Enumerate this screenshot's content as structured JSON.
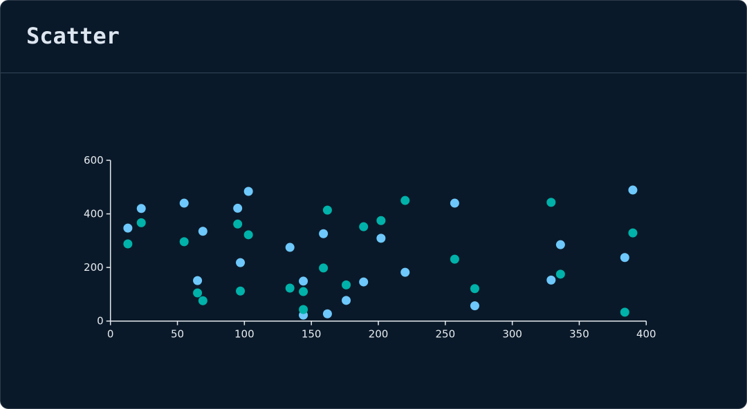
{
  "header": {
    "title": "Scatter"
  },
  "chart_data": {
    "type": "scatter",
    "title": "Scatter",
    "xlim": [
      0,
      400
    ],
    "ylim": [
      0,
      600
    ],
    "xticks": [
      0,
      50,
      100,
      150,
      200,
      250,
      300,
      350,
      400
    ],
    "yticks": [
      0,
      200,
      400,
      600
    ],
    "grid": false,
    "colors": [
      "#6ec8fb",
      "#00b2a9"
    ],
    "x": [
      13,
      23,
      55,
      65,
      69,
      95,
      97,
      103,
      134,
      144,
      144,
      159,
      162,
      176,
      189,
      202,
      220,
      257,
      272,
      329,
      336,
      384,
      390
    ],
    "series": [
      {
        "values": [
          347,
          420,
          440,
          151,
          335,
          421,
          218,
          484,
          275,
          149,
          22,
          326,
          27,
          77,
          146,
          309,
          182,
          440,
          57,
          153,
          285,
          237,
          489
        ]
      },
      {
        "values": [
          288,
          367,
          296,
          105,
          76,
          362,
          112,
          322,
          123,
          110,
          43,
          198,
          414,
          135,
          352,
          375,
          450,
          231,
          121,
          443,
          175,
          33,
          329
        ]
      }
    ]
  }
}
